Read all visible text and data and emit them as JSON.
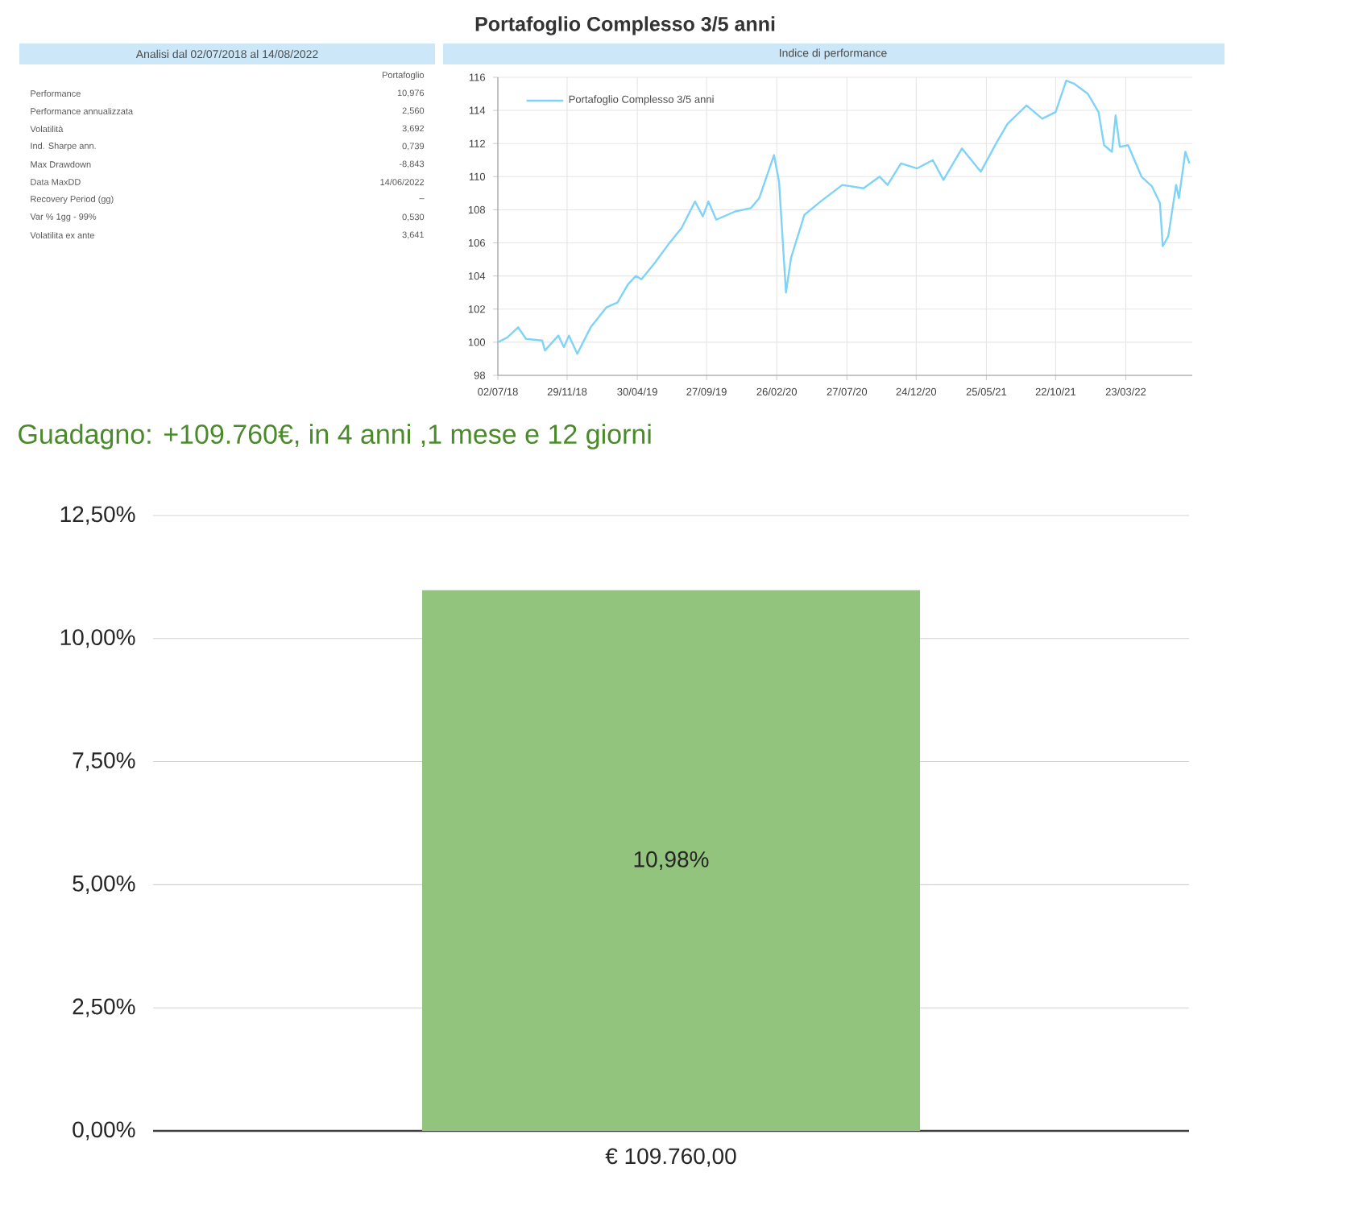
{
  "chart_data": [
    {
      "type": "other",
      "title": "Analisi dal 02/07/2018 al 14/08/2022",
      "categories": [
        "Performance",
        "Performance annualizzata",
        "Volatilità",
        "Ind. Sharpe ann.",
        "Max Drawdown",
        "Data MaxDD",
        "Recovery Period (gg)",
        "Var % 1gg - 99%",
        "Volatilita ex ante"
      ],
      "series": [
        {
          "name": "Portafoglio",
          "values": [
            10.976,
            2.56,
            3.692,
            0.739,
            -8.843,
            null,
            null,
            0.53,
            3.641
          ],
          "value_labels": [
            "10,976",
            "2,560",
            "3,692",
            "0,739",
            "-8,843",
            "14/06/2022",
            "–",
            "0,530",
            "3,641"
          ]
        }
      ]
    },
    {
      "type": "line",
      "title": "Portafoglio Complesso 3/5 anni",
      "subtitle": "Indice di performance",
      "x": [
        "2018-07-02",
        "2018-07-23",
        "2018-08-15",
        "2018-09-01",
        "2018-10-06",
        "2018-10-12",
        "2018-11-10",
        "2018-11-22",
        "2018-12-03",
        "2018-12-21",
        "2019-01-19",
        "2019-02-22",
        "2019-03-18",
        "2019-04-10",
        "2019-04-27",
        "2019-05-09",
        "2019-06-07",
        "2019-07-06",
        "2019-08-04",
        "2019-09-02",
        "2019-09-19",
        "2019-10-01",
        "2019-10-18",
        "2019-11-28",
        "2020-01-01",
        "2020-01-19",
        "2020-02-20",
        "2020-03-02",
        "2020-03-17",
        "2020-03-28",
        "2020-04-26",
        "2020-05-31",
        "2020-07-17",
        "2020-09-01",
        "2020-10-06",
        "2020-10-23",
        "2020-11-21",
        "2020-12-26",
        "2021-01-29",
        "2021-02-21",
        "2021-04-02",
        "2021-05-13",
        "2021-06-17",
        "2021-07-10",
        "2021-08-20",
        "2021-09-23",
        "2021-10-22",
        "2021-11-14",
        "2021-12-02",
        "2021-12-31",
        "2022-01-23",
        "2022-02-04",
        "2022-02-21",
        "2022-03-01",
        "2022-03-10",
        "2022-03-28",
        "2022-04-26",
        "2022-05-19",
        "2022-06-05",
        "2022-06-11",
        "2022-06-23",
        "2022-07-10",
        "2022-07-16",
        "2022-07-30",
        "2022-08-08"
      ],
      "series": [
        {
          "name": "Portafoglio Complesso 3/5 anni",
          "color": "#7fd3f7",
          "values": [
            100.0,
            100.3,
            100.9,
            100.2,
            100.1,
            99.5,
            100.4,
            99.7,
            100.4,
            99.3,
            100.9,
            102.1,
            102.4,
            103.5,
            104.0,
            103.8,
            104.8,
            105.9,
            106.9,
            108.5,
            107.6,
            108.5,
            107.4,
            107.9,
            108.1,
            108.7,
            111.3,
            109.7,
            103.0,
            105.1,
            107.7,
            108.5,
            109.5,
            109.3,
            110.0,
            109.5,
            110.8,
            110.5,
            111.0,
            109.8,
            111.7,
            110.3,
            112.1,
            113.2,
            114.3,
            113.5,
            113.9,
            115.8,
            115.6,
            115.0,
            113.9,
            111.9,
            111.5,
            113.7,
            111.8,
            111.9,
            110.0,
            109.4,
            108.4,
            105.8,
            106.4,
            109.5,
            108.7,
            111.5,
            110.8
          ]
        }
      ],
      "xlim": [
        "2018-07-02",
        "2022-08-14"
      ],
      "xticks": [
        {
          "value": "2018-07-02",
          "label": "02/07/18"
        },
        {
          "value": "2018-11-29",
          "label": "29/11/18"
        },
        {
          "value": "2019-04-30",
          "label": "30/04/19"
        },
        {
          "value": "2019-09-27",
          "label": "27/09/19"
        },
        {
          "value": "2020-02-26",
          "label": "26/02/20"
        },
        {
          "value": "2020-07-27",
          "label": "27/07/20"
        },
        {
          "value": "2020-12-24",
          "label": "24/12/20"
        },
        {
          "value": "2021-05-25",
          "label": "25/05/21"
        },
        {
          "value": "2021-10-22",
          "label": "22/10/21"
        },
        {
          "value": "2022-03-23",
          "label": "23/03/22"
        }
      ],
      "ylim": [
        98,
        116
      ],
      "yticks": [
        98,
        100,
        102,
        104,
        106,
        108,
        110,
        112,
        114,
        116
      ],
      "grid": true,
      "legend": "top left"
    },
    {
      "type": "bar",
      "title": "Guadagno: +109.760€, in 4 anni ,1 mese e 12 giorni",
      "categories": [
        "€ 109.760,00"
      ],
      "values": [
        10.98
      ],
      "color": "#93c47d",
      "value_labels": [
        "10,98%"
      ],
      "ylim": [
        0,
        12.5
      ],
      "yticks": [
        {
          "value": 0,
          "label": "0,00%"
        },
        {
          "value": 2.5,
          "label": "2,50%"
        },
        {
          "value": 5,
          "label": "5,00%"
        },
        {
          "value": 7.5,
          "label": "7,50%"
        },
        {
          "value": 10,
          "label": "10,00%"
        },
        {
          "value": 12.5,
          "label": "12,50%"
        }
      ],
      "grid": "y"
    }
  ]
}
